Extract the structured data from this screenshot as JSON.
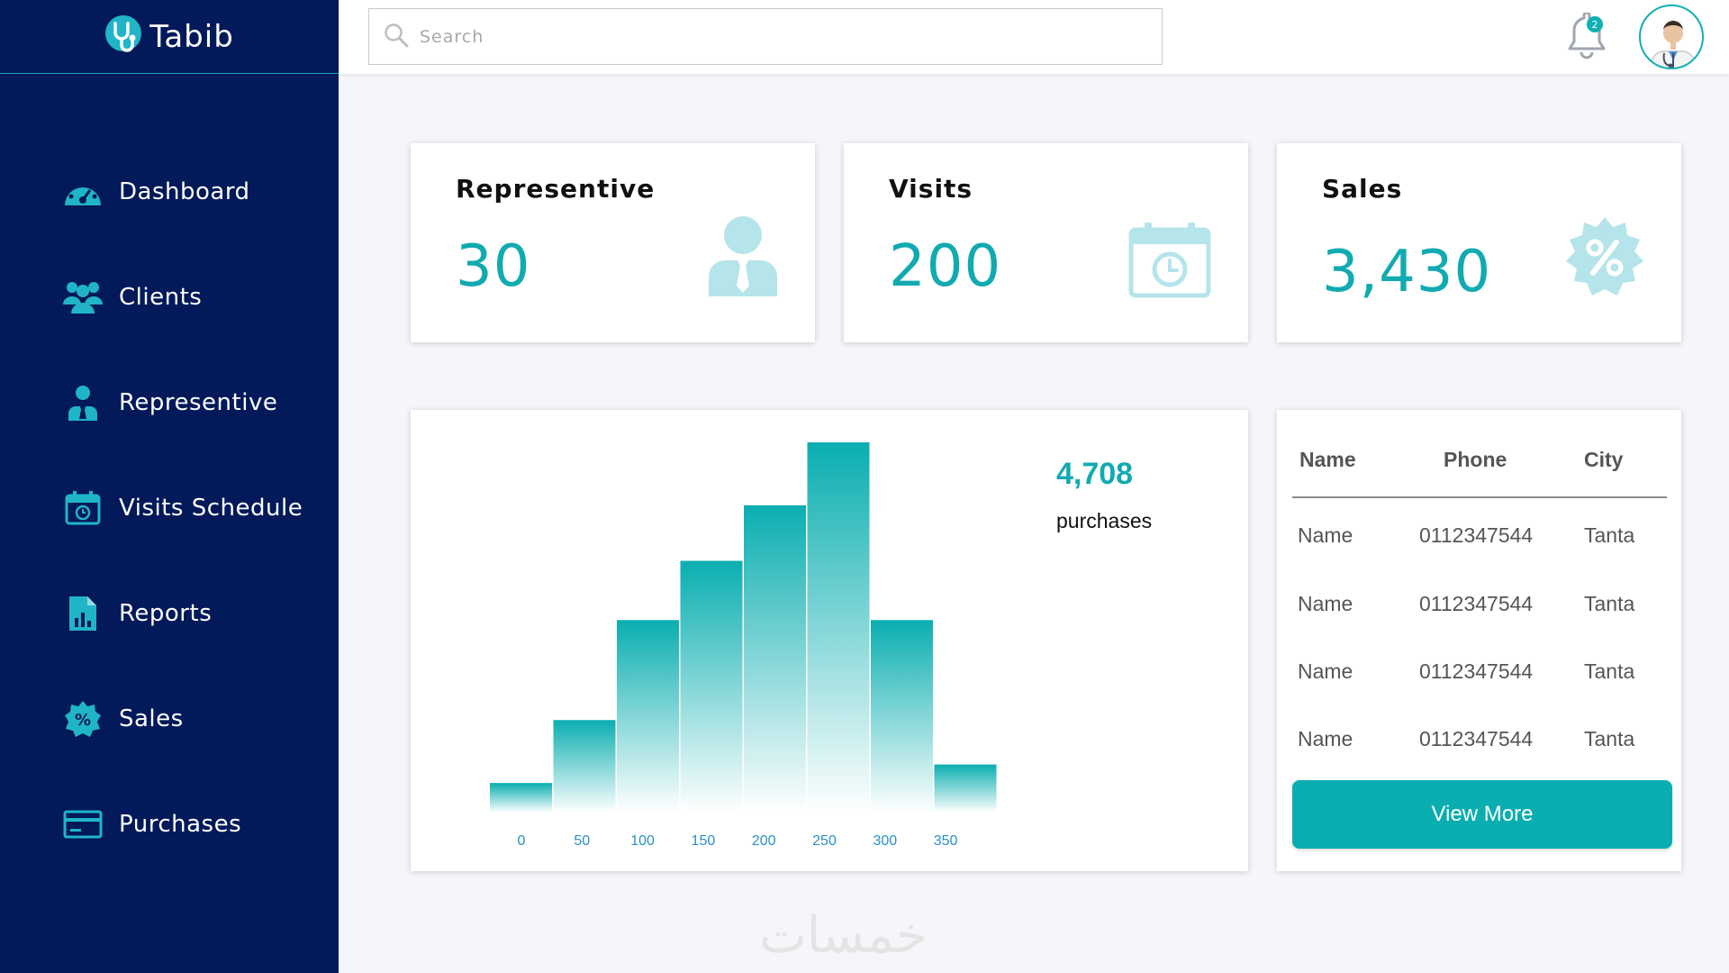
{
  "brand": {
    "name": "Tabib"
  },
  "sidebar": {
    "items": [
      {
        "label": "Dashboard",
        "icon": "dashboard-icon"
      },
      {
        "label": "Clients",
        "icon": "clients-icon"
      },
      {
        "label": "Representive",
        "icon": "representive-icon"
      },
      {
        "label": "Visits Schedule",
        "icon": "calendar-icon"
      },
      {
        "label": "Reports",
        "icon": "reports-icon"
      },
      {
        "label": "Sales",
        "icon": "sales-icon"
      },
      {
        "label": "Purchases",
        "icon": "card-icon"
      }
    ]
  },
  "header": {
    "search_placeholder": "Search",
    "notification_count": "2"
  },
  "stats": [
    {
      "title": "Representive",
      "value": "30",
      "icon": "user-tie-icon"
    },
    {
      "title": "Visits",
      "value": "200",
      "icon": "calendar-clock-icon"
    },
    {
      "title": "Sales",
      "value": "3,430",
      "icon": "percent-badge-icon"
    }
  ],
  "purchases": {
    "total": "4,708",
    "label": "purchases"
  },
  "chart_data": {
    "type": "bar",
    "categories": [
      "0",
      "50",
      "100",
      "150",
      "200",
      "250",
      "300",
      "350"
    ],
    "values": [
      8,
      25,
      52,
      68,
      83,
      100,
      52,
      13
    ],
    "title": "",
    "xlabel": "",
    "ylabel": "",
    "ylim": [
      0,
      100
    ],
    "grid": false,
    "colors": {
      "top": "#0aaeb0",
      "bottom": "#ffffff"
    }
  },
  "table": {
    "headers": [
      "Name",
      "Phone",
      "City"
    ],
    "rows": [
      [
        "Name",
        "0112347544",
        "Tanta"
      ],
      [
        "Name",
        "0112347544",
        "Tanta"
      ],
      [
        "Name",
        "0112347544",
        "Tanta"
      ],
      [
        "Name",
        "0112347544",
        "Tanta"
      ]
    ],
    "button_label": "View More"
  },
  "watermark": "خمسات",
  "colors": {
    "sidebar": "#02195a",
    "accent": "#0fb0b3",
    "icon_light": "#b5e4ea"
  }
}
